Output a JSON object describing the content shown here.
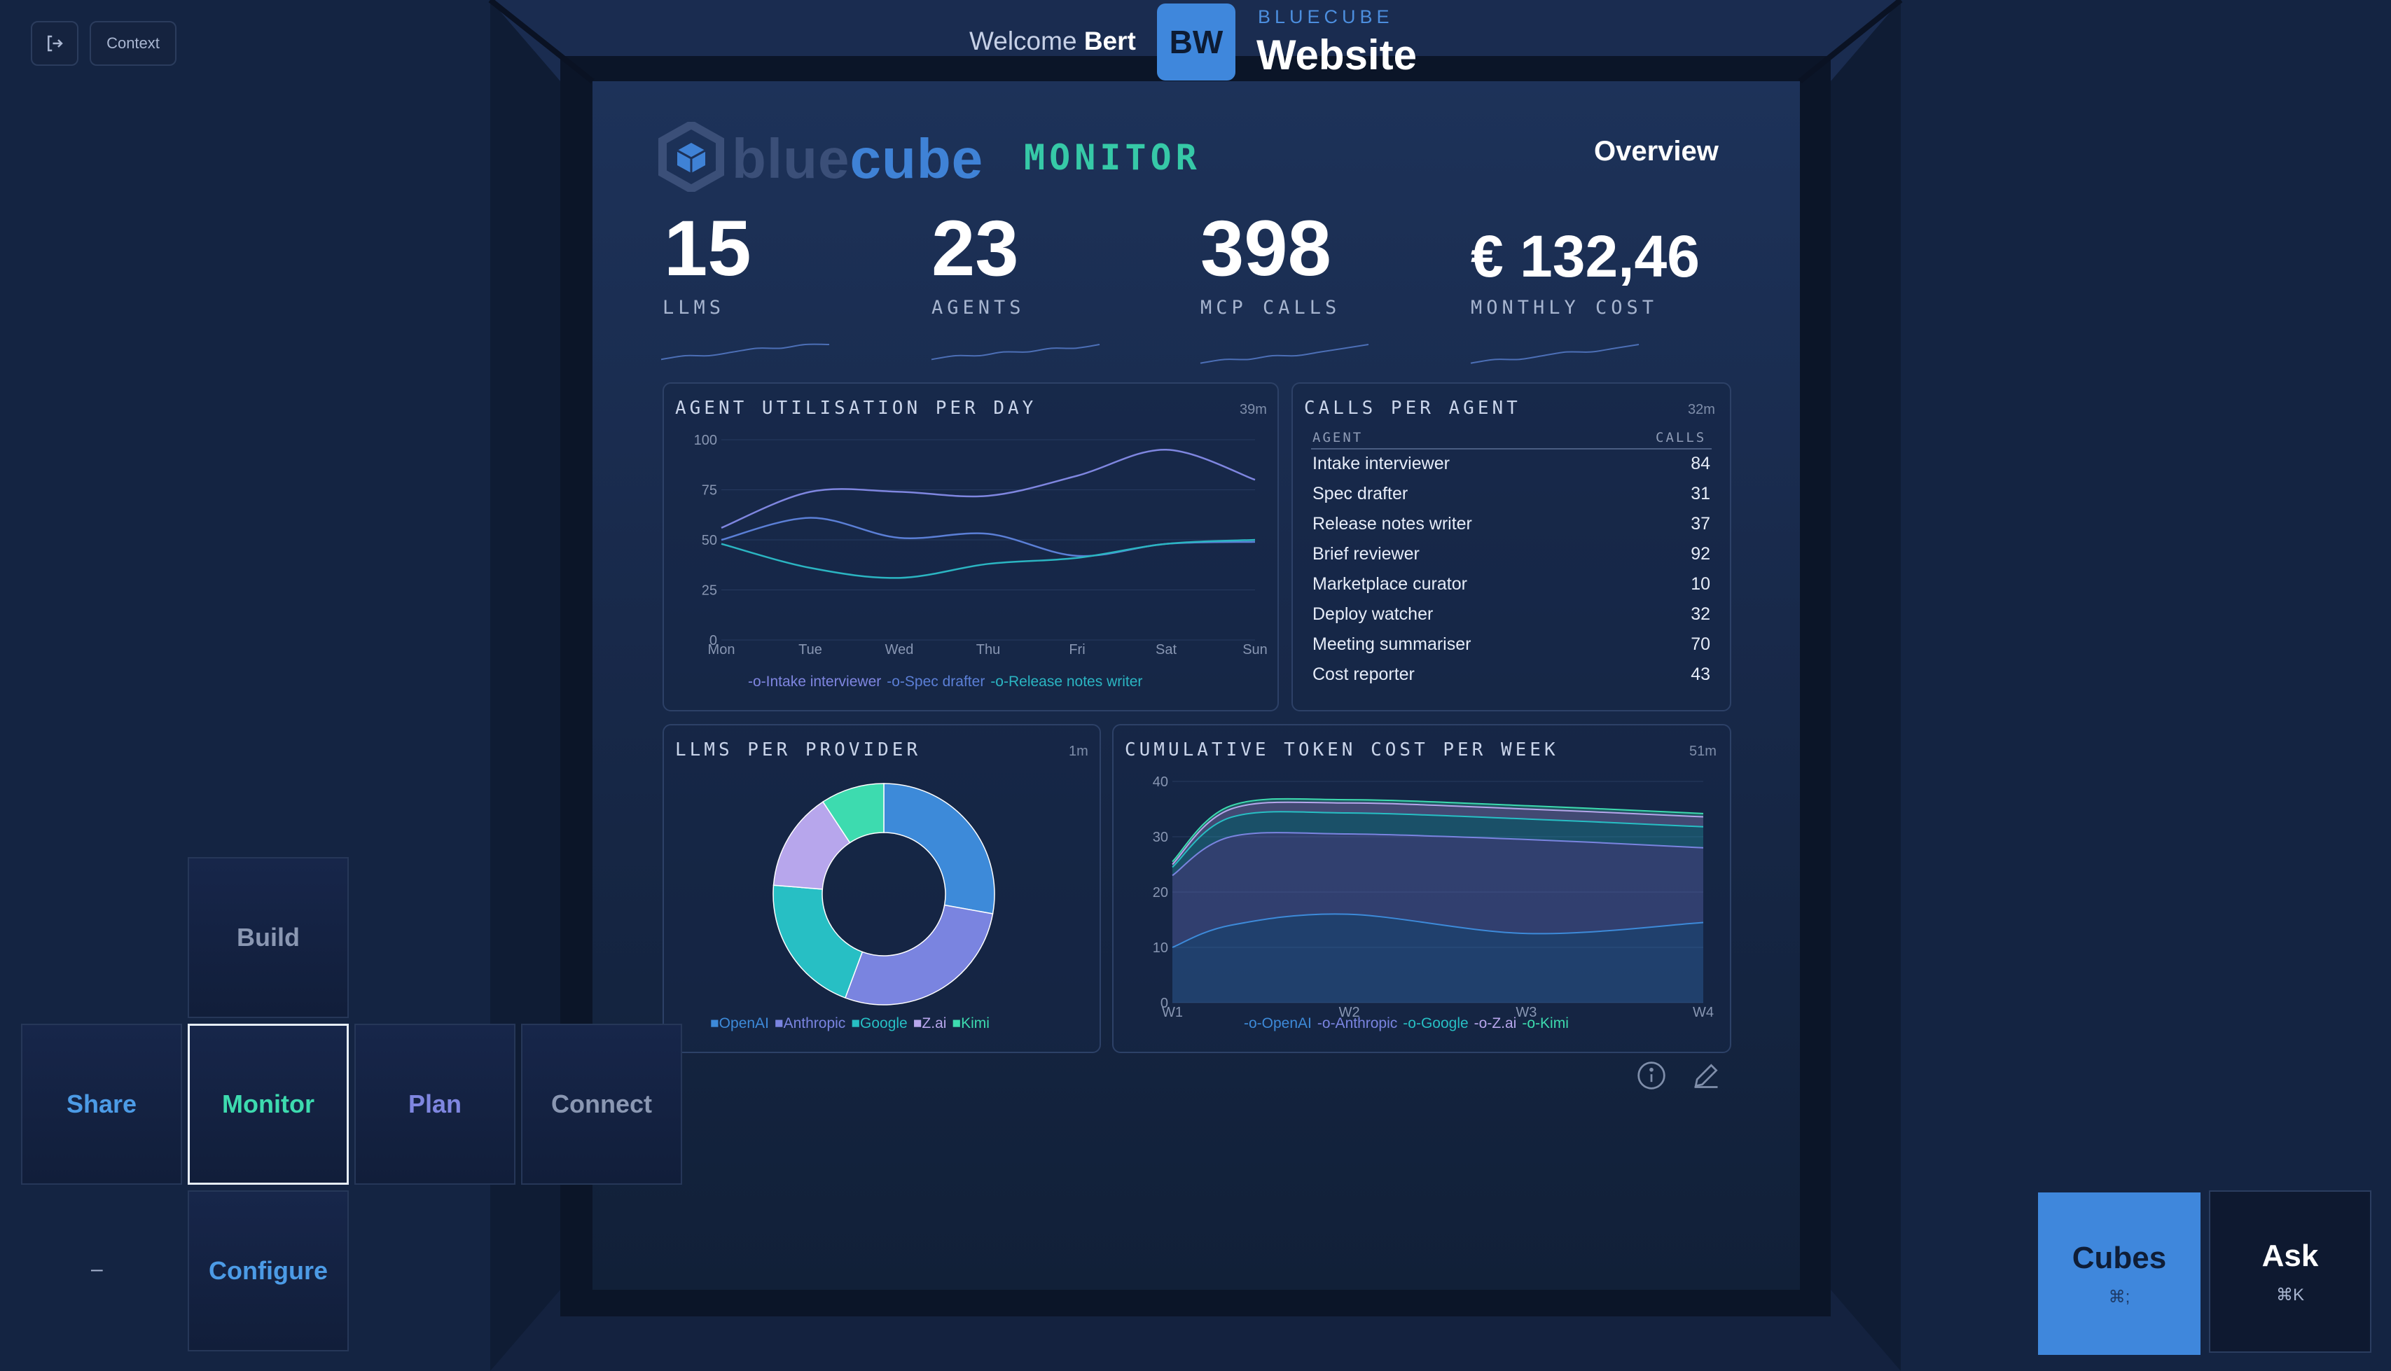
{
  "toolbar": {
    "context_label": "Context"
  },
  "header": {
    "welcome_prefix": "Welcome",
    "user_name": "Bert",
    "badge_initials": "BW",
    "workspace_small": "BLUECUBE",
    "workspace_name": "Website"
  },
  "screen": {
    "logo_part1": "blue",
    "logo_part2": "cube",
    "logo_suffix": "MONITOR",
    "page_title": "Overview"
  },
  "kpis": [
    {
      "value": "15",
      "label": "LLMS",
      "trend": [
        2,
        3,
        3,
        4,
        5,
        5,
        6,
        6
      ]
    },
    {
      "value": "23",
      "label": "AGENTS",
      "trend": [
        2,
        3,
        3,
        4,
        4,
        5,
        5,
        6
      ]
    },
    {
      "value": "398",
      "label": "MCP CALLS",
      "trend": [
        1,
        2,
        2,
        3,
        3,
        4,
        5,
        6
      ]
    },
    {
      "value": "€ 132,46",
      "label": "MONTHLY COST",
      "trend": [
        1,
        2,
        2,
        3,
        4,
        4,
        5,
        6
      ]
    }
  ],
  "panels": {
    "utilisation": {
      "title": "AGENT UTILISATION PER DAY",
      "age": "39m"
    },
    "calls": {
      "title": "CALLS PER AGENT",
      "age": "32m",
      "col_agent": "AGENT",
      "col_calls": "CALLS"
    },
    "providers": {
      "title": "LLMS PER PROVIDER",
      "age": "1m"
    },
    "token_cost": {
      "title": "CUMULATIVE TOKEN COST PER WEEK",
      "age": "51m"
    }
  },
  "chart_data": [
    {
      "type": "line",
      "categories": [
        "Mon",
        "Tue",
        "Wed",
        "Thu",
        "Fri",
        "Sat",
        "Sun"
      ],
      "ylim": [
        0,
        100
      ],
      "yticks": [
        0,
        25,
        50,
        75,
        100
      ],
      "series": [
        {
          "name": "Intake interviewer",
          "color": "#7f86e0",
          "values": [
            56,
            74,
            74,
            72,
            82,
            95,
            80
          ]
        },
        {
          "name": "Spec drafter",
          "color": "#5b7fd6",
          "values": [
            50,
            61,
            51,
            53,
            42,
            48,
            49
          ]
        },
        {
          "name": "Release notes writer",
          "color": "#2bb5c2",
          "values": [
            48,
            36,
            31,
            38,
            41,
            48,
            50
          ]
        }
      ]
    },
    {
      "type": "table",
      "rows": [
        {
          "agent": "Intake interviewer",
          "calls": "84"
        },
        {
          "agent": "Spec drafter",
          "calls": "31"
        },
        {
          "agent": "Release notes writer",
          "calls": "37"
        },
        {
          "agent": "Brief reviewer",
          "calls": "92"
        },
        {
          "agent": "Marketplace curator",
          "calls": "10"
        },
        {
          "agent": "Deploy watcher",
          "calls": "32"
        },
        {
          "agent": "Meeting summariser",
          "calls": "70"
        },
        {
          "agent": "Cost reporter",
          "calls": "43"
        }
      ]
    },
    {
      "type": "pie",
      "slices": [
        {
          "name": "OpenAI",
          "value": 27,
          "color": "#3d8ad9"
        },
        {
          "name": "Anthropic",
          "value": 27,
          "color": "#7a84e0"
        },
        {
          "name": "Google",
          "value": 20,
          "color": "#27bfc4"
        },
        {
          "name": "Z.ai",
          "value": 14,
          "color": "#b7a6ec"
        },
        {
          "name": "Kimi",
          "value": 9,
          "color": "#3ddbaf"
        }
      ]
    },
    {
      "type": "area",
      "categories": [
        "W1",
        "W2",
        "W3",
        "W4"
      ],
      "x": [
        0,
        0.11,
        0.33,
        0.67,
        1
      ],
      "ylim": [
        0,
        40
      ],
      "yticks": [
        0,
        10,
        20,
        30,
        40
      ],
      "series": [
        {
          "name": "OpenAI",
          "color": "#3d8ad9",
          "values": [
            10,
            14,
            16,
            12.5,
            14.5
          ]
        },
        {
          "name": "Anthropic",
          "color": "#7a84e0",
          "values": [
            13,
            16,
            14.5,
            17,
            13.5
          ]
        },
        {
          "name": "Google",
          "color": "#27bfc4",
          "values": [
            1.5,
            3.5,
            3.8,
            3.7,
            3.8
          ]
        },
        {
          "name": "Z.ai",
          "color": "#b7a6ec",
          "values": [
            0.5,
            1.5,
            1.8,
            1.8,
            1.8
          ]
        },
        {
          "name": "Kimi",
          "color": "#3ddbaf",
          "values": [
            0.5,
            0.6,
            0.6,
            0.6,
            0.6
          ]
        }
      ]
    }
  ],
  "nav": {
    "build": "Build",
    "share": "Share",
    "monitor": "Monitor",
    "plan": "Plan",
    "connect": "Connect",
    "minus": "–",
    "configure": "Configure"
  },
  "actions": {
    "cubes_label": "Cubes",
    "cubes_shortcut": "⌘;",
    "ask_label": "Ask",
    "ask_shortcut": "⌘K"
  },
  "colors": {
    "accent": "#3f87dc",
    "active_text": "#3ddbaf",
    "background": "#142442"
  }
}
